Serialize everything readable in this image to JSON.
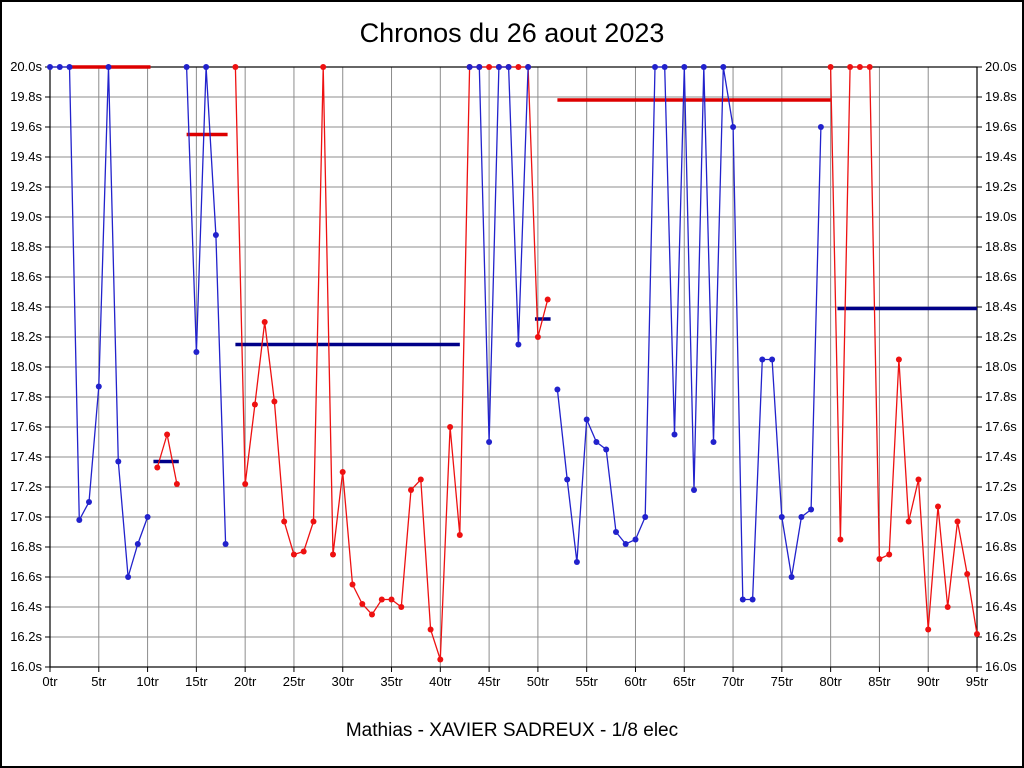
{
  "chart_data": {
    "type": "line",
    "title": "Chronos du 26 aout 2023",
    "subtitle": "Mathias - XAVIER SADREUX - 1/8 elec",
    "x_axis": {
      "unit": "tr",
      "min": 0,
      "max": 95,
      "tick_step": 5
    },
    "y_axis": {
      "unit": "s",
      "min": 16.0,
      "max": 20.0,
      "tick_step": 0.2
    },
    "x_tick_labels": [
      "0tr",
      "5tr",
      "10tr",
      "15tr",
      "20tr",
      "25tr",
      "30tr",
      "35tr",
      "40tr",
      "45tr",
      "50tr",
      "55tr",
      "60tr",
      "65tr",
      "70tr",
      "75tr",
      "80tr",
      "85tr",
      "90tr",
      "95tr"
    ],
    "y_tick_labels": [
      "20.0s",
      "19.8s",
      "19.6s",
      "19.4s",
      "19.2s",
      "19.0s",
      "18.8s",
      "18.6s",
      "18.4s",
      "18.2s",
      "18.0s",
      "17.8s",
      "17.6s",
      "17.4s",
      "17.2s",
      "17.0s",
      "16.8s",
      "16.6s",
      "16.4s",
      "16.2s",
      "16.0s"
    ],
    "grid": {
      "color": "#8c8c8c",
      "frame_color": "#000000"
    },
    "series": [
      {
        "name": "red-driver",
        "color": "#ee1111",
        "stints": [
          [
            [
              11,
              17.33
            ],
            [
              12,
              17.55
            ],
            [
              13,
              17.22
            ]
          ],
          [
            [
              19,
              20
            ],
            [
              20,
              17.22
            ],
            [
              21,
              17.75
            ],
            [
              22,
              18.3
            ],
            [
              23,
              17.77
            ],
            [
              24,
              16.97
            ],
            [
              25,
              16.75
            ],
            [
              26,
              16.77
            ],
            [
              27,
              16.97
            ],
            [
              28,
              20
            ],
            [
              29,
              16.75
            ],
            [
              30,
              17.3
            ],
            [
              31,
              16.55
            ],
            [
              32,
              16.42
            ],
            [
              33,
              16.35
            ],
            [
              34,
              16.45
            ],
            [
              35,
              16.45
            ],
            [
              36,
              16.4
            ],
            [
              37,
              17.18
            ],
            [
              38,
              17.25
            ],
            [
              39,
              16.25
            ],
            [
              40,
              16.05
            ],
            [
              41,
              17.6
            ],
            [
              42,
              16.88
            ],
            [
              43,
              20
            ],
            [
              44,
              20
            ],
            [
              45,
              20
            ],
            [
              46,
              20
            ],
            [
              47,
              20
            ],
            [
              48,
              20
            ],
            [
              49,
              20
            ],
            [
              50,
              18.2
            ],
            [
              51,
              18.45
            ]
          ],
          [
            [
              80,
              20
            ],
            [
              81,
              16.85
            ],
            [
              82,
              20
            ],
            [
              83,
              20
            ],
            [
              84,
              20
            ],
            [
              85,
              16.72
            ],
            [
              86,
              16.75
            ],
            [
              87,
              18.05
            ],
            [
              88,
              16.97
            ],
            [
              89,
              17.25
            ],
            [
              90,
              16.25
            ],
            [
              91,
              17.07
            ],
            [
              92,
              16.4
            ],
            [
              93,
              16.97
            ],
            [
              94,
              16.62
            ],
            [
              95,
              16.22
            ]
          ]
        ]
      },
      {
        "name": "blue-driver",
        "color": "#2222cc",
        "stints": [
          [
            [
              0,
              20
            ],
            [
              1,
              20
            ],
            [
              2,
              20
            ],
            [
              3,
              16.98
            ],
            [
              4,
              17.1
            ],
            [
              5,
              17.87
            ],
            [
              6,
              20
            ],
            [
              7,
              17.37
            ],
            [
              8,
              16.6
            ],
            [
              9,
              16.82
            ],
            [
              10,
              17.0
            ]
          ],
          [
            [
              14,
              20
            ],
            [
              15,
              18.1
            ],
            [
              16,
              20
            ],
            [
              17,
              18.88
            ],
            [
              18,
              16.82
            ]
          ],
          [
            [
              43,
              20
            ],
            [
              44,
              20
            ],
            [
              45,
              17.5
            ],
            [
              46,
              20
            ],
            [
              47,
              20
            ],
            [
              48,
              18.15
            ],
            [
              49,
              20
            ]
          ],
          [
            [
              52,
              17.85
            ],
            [
              53,
              17.25
            ],
            [
              54,
              16.7
            ],
            [
              55,
              17.65
            ],
            [
              56,
              17.5
            ],
            [
              57,
              17.45
            ],
            [
              58,
              16.9
            ],
            [
              59,
              16.82
            ],
            [
              60,
              16.85
            ],
            [
              61,
              17.0
            ],
            [
              62,
              20
            ],
            [
              63,
              20
            ],
            [
              64,
              17.55
            ],
            [
              65,
              20
            ],
            [
              66,
              17.18
            ],
            [
              67,
              20
            ],
            [
              68,
              17.5
            ],
            [
              69,
              20
            ],
            [
              70,
              19.6
            ],
            [
              71,
              16.45
            ],
            [
              72,
              16.45
            ],
            [
              73,
              18.05
            ],
            [
              74,
              18.05
            ],
            [
              75,
              17.0
            ],
            [
              76,
              16.6
            ],
            [
              77,
              17.0
            ],
            [
              78,
              17.05
            ],
            [
              79,
              19.6
            ]
          ]
        ]
      }
    ],
    "average_segments": [
      {
        "color": "#dd0000",
        "y": 20.0,
        "from": 2.0,
        "to": 10.3
      },
      {
        "color": "#000088",
        "y": 17.37,
        "from": 10.6,
        "to": 13.2
      },
      {
        "color": "#dd0000",
        "y": 19.55,
        "from": 14.0,
        "to": 18.2
      },
      {
        "color": "#000088",
        "y": 18.15,
        "from": 19.0,
        "to": 42.0
      },
      {
        "color": "#000088",
        "y": 18.32,
        "from": 49.7,
        "to": 51.3
      },
      {
        "color": "#dd0000",
        "y": 19.78,
        "from": 52.0,
        "to": 80.0
      },
      {
        "color": "#000088",
        "y": 18.39,
        "from": 80.7,
        "to": 95.0
      }
    ]
  }
}
